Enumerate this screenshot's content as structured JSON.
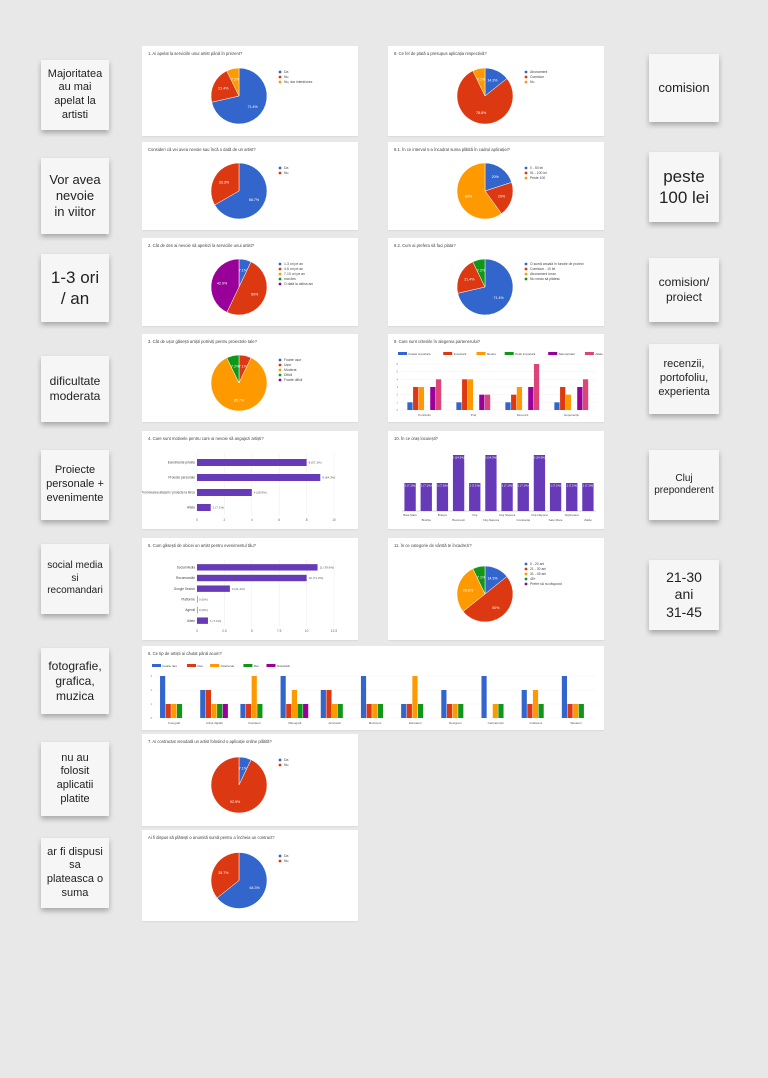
{
  "notes": [
    {
      "lines": [
        "Majoritatea",
        "au mai",
        "apelat la",
        "artisti"
      ]
    },
    {
      "lines": [
        "Vor avea",
        "nevoie",
        "in viitor"
      ]
    },
    {
      "lines": [
        "1-3 ori",
        "/ an"
      ]
    },
    {
      "lines": [
        "dificultate",
        "moderata"
      ]
    },
    {
      "lines": [
        "Proiecte",
        "personale +",
        "evenimente"
      ]
    },
    {
      "lines": [
        "social media",
        "si",
        "recomandari"
      ]
    },
    {
      "lines": [
        "fotografie,",
        "grafica,",
        "muzica"
      ]
    },
    {
      "lines": [
        "nu au",
        "folosit",
        "aplicatii",
        "platite"
      ]
    },
    {
      "lines": [
        "ar fi dispusi",
        "sa",
        "plateasca o",
        "suma"
      ]
    },
    {
      "lines": [
        "comision"
      ]
    },
    {
      "lines": [
        "peste",
        "100 lei"
      ]
    },
    {
      "lines": [
        "comision/",
        "proiect"
      ]
    },
    {
      "lines": [
        "recenzii,",
        "portofoliu,",
        "experienta"
      ]
    },
    {
      "lines": [
        "Cluj",
        "preponderent"
      ]
    },
    {
      "lines": [
        "21-30",
        "ani",
        "31-45"
      ]
    }
  ],
  "colors": {
    "blue": "#3366cc",
    "red": "#dc3912",
    "orange": "#ff9900",
    "green": "#109618",
    "purple": "#990099",
    "violet": "#673ab7",
    "pink": "#dd4477",
    "teal": "#0099c6"
  },
  "chart_data": [
    {
      "type": "pie",
      "title": "1. Ai apelat la serviciile unui artist până în prezent?",
      "slices": [
        {
          "label": "Da",
          "value": 71.4,
          "color": "#3366cc"
        },
        {
          "label": "Nu",
          "value": 21.4,
          "color": "#dc3912"
        },
        {
          "label": "Nu, dar intenționez",
          "value": 7.2,
          "color": "#ff9900"
        }
      ]
    },
    {
      "type": "pie",
      "title": "Consideri că vei avea nevoie sau încă o dată de un artist?",
      "slices": [
        {
          "label": "Da",
          "value": 66.7,
          "color": "#3366cc"
        },
        {
          "label": "Nu",
          "value": 33.3,
          "color": "#dc3912"
        }
      ]
    },
    {
      "type": "pie",
      "title": "2. Cât de des ai nevoie să apelezi la serviciile unui artist?",
      "slices": [
        {
          "label": "1-3 ori pe an",
          "value": 7.1,
          "color": "#3366cc"
        },
        {
          "label": "4-6 ori pe an",
          "value": 50,
          "color": "#dc3912"
        },
        {
          "label": "7-10 ori pe an",
          "value": 0,
          "color": "#ff9900"
        },
        {
          "label": "mai des",
          "value": 0,
          "color": "#109618"
        },
        {
          "label": "O dată la câțiva ani",
          "value": 42.9,
          "color": "#990099"
        }
      ]
    },
    {
      "type": "pie",
      "title": "3. Cât de ușor găsești artiști potriviți pentru proiectele tale?",
      "slices": [
        {
          "label": "Foarte ușor",
          "value": 0,
          "color": "#3366cc"
        },
        {
          "label": "Ușor",
          "value": 7.1,
          "color": "#dc3912"
        },
        {
          "label": "Moderat",
          "value": 85.7,
          "color": "#ff9900"
        },
        {
          "label": "Dificil",
          "value": 7.2,
          "color": "#109618"
        },
        {
          "label": "Foarte dificil",
          "value": 0,
          "color": "#990099"
        }
      ]
    },
    {
      "type": "bar",
      "orientation": "horizontal",
      "title": "4. Care sunt motivele pentru care ai nevoie să angajezi artiști?",
      "categories": [
        "Evenimente private",
        "Proiecte personale",
        "Promovarea afacerii / proiecte la birou",
        "Altele"
      ],
      "values": [
        8,
        9,
        4,
        1
      ],
      "labels": [
        "8 (57.1%)",
        "9 (64.3%)",
        "4 (28.6%)",
        "1 (7.1%)"
      ],
      "xlim": [
        0,
        10
      ],
      "ticks": [
        "0",
        "2",
        "4",
        "6",
        "8",
        "10"
      ]
    },
    {
      "type": "bar",
      "orientation": "horizontal",
      "title": "5. Cum găsești de obicei un artist pentru evenimentul tău?",
      "categories": [
        "Social Media",
        "Recomandări",
        "Google Search",
        "Platforme",
        "Agenții",
        "Altele"
      ],
      "values": [
        11,
        10,
        3,
        0,
        0,
        1
      ],
      "labels": [
        "11 (78.6%)",
        "10 (71.4%)",
        "3 (21.4%)",
        "0 (0%)",
        "0 (0%)",
        "1 (7.1%)"
      ],
      "xlim": [
        0,
        12.5
      ],
      "ticks": [
        "0",
        "2.5",
        "5",
        "7.5",
        "10",
        "12.5"
      ]
    },
    {
      "type": "bar",
      "title": "6. Ce tip de artiști ai căutat până acum?",
      "categories": [
        "Fotografi",
        "Artiști digitali",
        "Ilustratori",
        "Videografi",
        "Animatori",
        "Muzicieni",
        "Dansatori",
        "Designeri",
        "Caricaturiști",
        "Graficieni",
        "Tatuatori"
      ],
      "series": [
        {
          "name": "Foarte des",
          "color": "#3366cc",
          "values": [
            3,
            2,
            1,
            3,
            2,
            3,
            1,
            2,
            3,
            2,
            3
          ]
        },
        {
          "name": "Des",
          "color": "#dc3912",
          "values": [
            1,
            2,
            1,
            1,
            2,
            1,
            1,
            1,
            0,
            1,
            1
          ]
        },
        {
          "name": "Ocazional",
          "color": "#ff9900",
          "values": [
            1,
            1,
            3,
            2,
            1,
            1,
            3,
            1,
            1,
            2,
            1
          ]
        },
        {
          "name": "Rar",
          "color": "#109618",
          "values": [
            1,
            1,
            1,
            1,
            1,
            1,
            1,
            1,
            1,
            1,
            1
          ]
        },
        {
          "name": "Niciodată",
          "color": "#990099",
          "values": [
            0,
            1,
            0,
            1,
            0,
            0,
            0,
            0,
            0,
            0,
            0
          ]
        }
      ],
      "ylim": [
        0,
        3
      ]
    },
    {
      "type": "pie",
      "title": "7. Ai contractat vreodată un artist folosind o aplicație online plătită?",
      "slices": [
        {
          "label": "Da",
          "value": 7.1,
          "color": "#3366cc"
        },
        {
          "label": "Nu",
          "value": 92.9,
          "color": "#dc3912"
        }
      ]
    },
    {
      "type": "pie",
      "title": "Ai fi dispus să plătești o anumită sumă pentru a încheia un contract?",
      "slices": [
        {
          "label": "Da",
          "value": 64.3,
          "color": "#3366cc"
        },
        {
          "label": "Nu",
          "value": 35.7,
          "color": "#dc3912"
        }
      ]
    },
    {
      "type": "pie",
      "title": "8. Ce fel de plată a presupus aplicația respectivă?",
      "slices": [
        {
          "label": "Abonament",
          "value": 14.3,
          "color": "#3366cc"
        },
        {
          "label": "Comision",
          "value": 78.6,
          "color": "#dc3912"
        },
        {
          "label": "Nu",
          "value": 7.1,
          "color": "#ff9900"
        }
      ]
    },
    {
      "type": "pie",
      "title": "8.1. În ce interval s-a încadrat suma plătită în cadrul aplicației?",
      "slices": [
        {
          "label": "0 - 50 lei",
          "value": 20,
          "color": "#3366cc"
        },
        {
          "label": "51 - 100 lei",
          "value": 20,
          "color": "#dc3912"
        },
        {
          "label": "Peste 100",
          "value": 60,
          "color": "#ff9900"
        }
      ]
    },
    {
      "type": "pie",
      "title": "8.2. Cum ai prefera să faci plata?",
      "slices": [
        {
          "label": "O sumă anuală în funcție de proiect",
          "value": 71.4,
          "color": "#3366cc"
        },
        {
          "label": "Comision - 10 lei",
          "value": 21.4,
          "color": "#dc3912"
        },
        {
          "label": "Abonament lunar",
          "value": 0,
          "color": "#ff9900"
        },
        {
          "label": "Nu vreau să plătesc",
          "value": 7.2,
          "color": "#109618"
        }
      ]
    },
    {
      "type": "bar",
      "title": "9. Care sunt criteriile în alegerea partenerului?",
      "categories": [
        "Portofoliu",
        "Preț",
        "Recenzii",
        "Experiență"
      ],
      "series": [
        {
          "name": "Foarte important",
          "color": "#3366cc",
          "values": [
            1,
            1,
            1,
            1
          ]
        },
        {
          "name": "Important",
          "color": "#dc3912",
          "values": [
            3,
            4,
            2,
            3
          ]
        },
        {
          "name": "Neutru",
          "color": "#ff9900",
          "values": [
            3,
            4,
            3,
            2
          ]
        },
        {
          "name": "Puțin important",
          "color": "#109618",
          "values": [
            0,
            0,
            0,
            0
          ]
        },
        {
          "name": "Neimportant",
          "color": "#990099",
          "values": [
            3,
            2,
            3,
            3
          ]
        },
        {
          "name": "Altele",
          "color": "#dd4477",
          "values": [
            4,
            2,
            6,
            4
          ]
        }
      ],
      "ylim": [
        0,
        6
      ]
    },
    {
      "type": "bar",
      "title": "10. În ce oraș locuiești?",
      "categories": [
        "Baia Mare",
        "Bistrița",
        "Brașov",
        "București",
        "Cluj",
        "Cluj-Napoca",
        "Cluj Napoca",
        "Constanța",
        "Cluj-Napoca ",
        "Satu Mare",
        "Sighișoara",
        "Zalău"
      ],
      "values": [
        1,
        1,
        1,
        2,
        1,
        2,
        1,
        1,
        2,
        1,
        1,
        1
      ],
      "labels": [
        "1 (7.1%)",
        "1 (7.1%)",
        "1 (7.1%)",
        "2 (14.3%)",
        "1 (7.1%)",
        "2 (14.3%)",
        "1 (7.1%)",
        "1 (7.1%)",
        "2 (14.3%)",
        "1 (7.1%)",
        "1 (7.1%)",
        "1 (7.1%)"
      ],
      "ylim": [
        0,
        2
      ]
    },
    {
      "type": "pie",
      "title": "11. În ce categorie de vârstă te încadrezi?",
      "slices": [
        {
          "label": "0 - 20 ani",
          "value": 14.3,
          "color": "#3366cc"
        },
        {
          "label": "21 - 30 ani",
          "value": 50,
          "color": "#dc3912"
        },
        {
          "label": "31 - 45 ani",
          "value": 28.6,
          "color": "#ff9900"
        },
        {
          "label": "45+",
          "value": 7.1,
          "color": "#109618"
        },
        {
          "label": "Prefer să nu răspund",
          "value": 0,
          "color": "#990099"
        }
      ]
    }
  ]
}
